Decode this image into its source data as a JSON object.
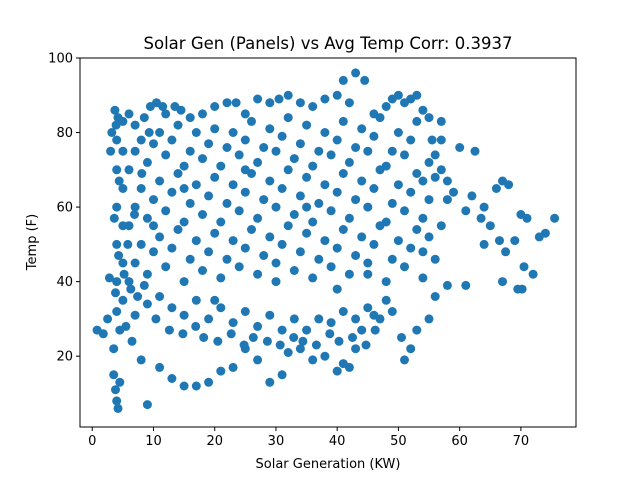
{
  "chart_data": {
    "type": "scatter",
    "title": "Solar Gen (Panels) vs Avg Temp Corr: 0.3937",
    "xlabel": "Solar Generation (KW)",
    "ylabel": "Temp (F)",
    "xlim": [
      -2,
      79
    ],
    "ylim": [
      1,
      100
    ],
    "xticks": [
      0,
      10,
      20,
      30,
      40,
      50,
      60,
      70
    ],
    "yticks": [
      20,
      40,
      60,
      80,
      100
    ],
    "grid": false,
    "legend": "none",
    "marker_color": "#1f77b4",
    "series": [
      {
        "points": [
          [
            0.8,
            27
          ],
          [
            1.8,
            26
          ],
          [
            2.5,
            30
          ],
          [
            2.8,
            41
          ],
          [
            3,
            75
          ],
          [
            3.2,
            80
          ],
          [
            3.5,
            15
          ],
          [
            3.8,
            11
          ],
          [
            4,
            8
          ],
          [
            4.2,
            6
          ],
          [
            4.5,
            13
          ],
          [
            3.7,
            86
          ],
          [
            4.2,
            84
          ],
          [
            5,
            83
          ],
          [
            6,
            85
          ],
          [
            7,
            82
          ],
          [
            8.5,
            84
          ],
          [
            9.5,
            87
          ],
          [
            10.5,
            88
          ],
          [
            11.5,
            87
          ],
          [
            12,
            85
          ],
          [
            13.5,
            87
          ],
          [
            14.5,
            86
          ],
          [
            16,
            84
          ],
          [
            18,
            85
          ],
          [
            20,
            87
          ],
          [
            22,
            88
          ],
          [
            23.5,
            88
          ],
          [
            25,
            85
          ],
          [
            27,
            89
          ],
          [
            29,
            88
          ],
          [
            30.5,
            89
          ],
          [
            32,
            90
          ],
          [
            34,
            88
          ],
          [
            36,
            87
          ],
          [
            38,
            89
          ],
          [
            40,
            90
          ],
          [
            41,
            94
          ],
          [
            42,
            88
          ],
          [
            43,
            96
          ],
          [
            44.5,
            94
          ],
          [
            46,
            85
          ],
          [
            48,
            87
          ],
          [
            49,
            89
          ],
          [
            50,
            90
          ],
          [
            51,
            88
          ],
          [
            52,
            89
          ],
          [
            53,
            90
          ],
          [
            54,
            86
          ],
          [
            55,
            84
          ],
          [
            57,
            83
          ],
          [
            55.5,
            78
          ],
          [
            56,
            74
          ],
          [
            57,
            70
          ],
          [
            58,
            67
          ],
          [
            59,
            64
          ],
          [
            60,
            76
          ],
          [
            61,
            59
          ],
          [
            62,
            63
          ],
          [
            62.5,
            75
          ],
          [
            63.5,
            57
          ],
          [
            64,
            60
          ],
          [
            65,
            55
          ],
          [
            66,
            65
          ],
          [
            67,
            67
          ],
          [
            68,
            66
          ],
          [
            66.5,
            51
          ],
          [
            67.5,
            48
          ],
          [
            69,
            51
          ],
          [
            70,
            58
          ],
          [
            71,
            57
          ],
          [
            73,
            52
          ],
          [
            74,
            53
          ],
          [
            75.5,
            57
          ],
          [
            70.5,
            44
          ],
          [
            72,
            42
          ],
          [
            69.5,
            38
          ],
          [
            70.2,
            38
          ],
          [
            67,
            40
          ],
          [
            64,
            50
          ],
          [
            61,
            39
          ],
          [
            58,
            39
          ],
          [
            56,
            36
          ],
          [
            54,
            41
          ],
          [
            55,
            30
          ],
          [
            53,
            27
          ],
          [
            52,
            22
          ],
          [
            51,
            19
          ],
          [
            50.5,
            25
          ],
          [
            49,
            32
          ],
          [
            48,
            35
          ],
          [
            46,
            31
          ],
          [
            45,
            33
          ],
          [
            47,
            30
          ],
          [
            44,
            27
          ],
          [
            43,
            22
          ],
          [
            42,
            17
          ],
          [
            41,
            18
          ],
          [
            40,
            16
          ],
          [
            38,
            20
          ],
          [
            36,
            19
          ],
          [
            34,
            22
          ],
          [
            32,
            21
          ],
          [
            31,
            15
          ],
          [
            29,
            13
          ],
          [
            27,
            19
          ],
          [
            25,
            22
          ],
          [
            23,
            17
          ],
          [
            21,
            16
          ],
          [
            19,
            13
          ],
          [
            17,
            12
          ],
          [
            15,
            12
          ],
          [
            13,
            14
          ],
          [
            11,
            17
          ],
          [
            9,
            7
          ],
          [
            8,
            19
          ],
          [
            6.5,
            24
          ],
          [
            5.5,
            28
          ],
          [
            7,
            31
          ],
          [
            9,
            34
          ],
          [
            11,
            36
          ],
          [
            13,
            33
          ],
          [
            15,
            31
          ],
          [
            17,
            35
          ],
          [
            19,
            30
          ],
          [
            21,
            33
          ],
          [
            23,
            29
          ],
          [
            25,
            32
          ],
          [
            27,
            28
          ],
          [
            29,
            31
          ],
          [
            31,
            27
          ],
          [
            33,
            30
          ],
          [
            35,
            27
          ],
          [
            37,
            30
          ],
          [
            39,
            29
          ],
          [
            41,
            32
          ],
          [
            43,
            30
          ],
          [
            4,
            32
          ],
          [
            5,
            35
          ],
          [
            4,
            40
          ],
          [
            5,
            45
          ],
          [
            4,
            50
          ],
          [
            5,
            55
          ],
          [
            4,
            60
          ],
          [
            5,
            65
          ],
          [
            4,
            70
          ],
          [
            5,
            75
          ],
          [
            4,
            78
          ],
          [
            6,
            40
          ],
          [
            7,
            45
          ],
          [
            8,
            50
          ],
          [
            6,
            55
          ],
          [
            7,
            60
          ],
          [
            8,
            65
          ],
          [
            6,
            70
          ],
          [
            7,
            75
          ],
          [
            8,
            78
          ],
          [
            9,
            42
          ],
          [
            10,
            48
          ],
          [
            11,
            52
          ],
          [
            9,
            57
          ],
          [
            10,
            62
          ],
          [
            11,
            67
          ],
          [
            9,
            72
          ],
          [
            10,
            77
          ],
          [
            11,
            80
          ],
          [
            12,
            44
          ],
          [
            13,
            49
          ],
          [
            14,
            54
          ],
          [
            12,
            59
          ],
          [
            13,
            64
          ],
          [
            14,
            69
          ],
          [
            12,
            74
          ],
          [
            13,
            78
          ],
          [
            14,
            82
          ],
          [
            15,
            40
          ],
          [
            16,
            46
          ],
          [
            17,
            51
          ],
          [
            15,
            56
          ],
          [
            16,
            61
          ],
          [
            17,
            66
          ],
          [
            15,
            71
          ],
          [
            16,
            75
          ],
          [
            17,
            80
          ],
          [
            18,
            43
          ],
          [
            19,
            48
          ],
          [
            20,
            53
          ],
          [
            18,
            58
          ],
          [
            19,
            63
          ],
          [
            20,
            68
          ],
          [
            18,
            73
          ],
          [
            19,
            77
          ],
          [
            20,
            81
          ],
          [
            21,
            41
          ],
          [
            22,
            46
          ],
          [
            23,
            51
          ],
          [
            21,
            56
          ],
          [
            22,
            61
          ],
          [
            23,
            66
          ],
          [
            21,
            71
          ],
          [
            22,
            76
          ],
          [
            23,
            80
          ],
          [
            24,
            44
          ],
          [
            25,
            49
          ],
          [
            26,
            54
          ],
          [
            24,
            59
          ],
          [
            25,
            64
          ],
          [
            26,
            69
          ],
          [
            24,
            74
          ],
          [
            25,
            78
          ],
          [
            26,
            83
          ],
          [
            27,
            42
          ],
          [
            28,
            47
          ],
          [
            29,
            52
          ],
          [
            27,
            57
          ],
          [
            28,
            62
          ],
          [
            29,
            67
          ],
          [
            27,
            72
          ],
          [
            28,
            76
          ],
          [
            29,
            81
          ],
          [
            30,
            45
          ],
          [
            31,
            50
          ],
          [
            32,
            55
          ],
          [
            30,
            60
          ],
          [
            31,
            65
          ],
          [
            32,
            70
          ],
          [
            30,
            75
          ],
          [
            31,
            79
          ],
          [
            32,
            84
          ],
          [
            33,
            43
          ],
          [
            34,
            48
          ],
          [
            35,
            53
          ],
          [
            33,
            58
          ],
          [
            34,
            63
          ],
          [
            35,
            68
          ],
          [
            33,
            73
          ],
          [
            34,
            77
          ],
          [
            35,
            82
          ],
          [
            36,
            41
          ],
          [
            37,
            46
          ],
          [
            38,
            51
          ],
          [
            36,
            56
          ],
          [
            37,
            61
          ],
          [
            38,
            66
          ],
          [
            36,
            71
          ],
          [
            37,
            75
          ],
          [
            38,
            80
          ],
          [
            39,
            44
          ],
          [
            40,
            49
          ],
          [
            41,
            54
          ],
          [
            39,
            59
          ],
          [
            40,
            64
          ],
          [
            41,
            69
          ],
          [
            39,
            74
          ],
          [
            40,
            78
          ],
          [
            41,
            83
          ],
          [
            42,
            42
          ],
          [
            43,
            47
          ],
          [
            44,
            52
          ],
          [
            42,
            57
          ],
          [
            43,
            62
          ],
          [
            44,
            67
          ],
          [
            42,
            72
          ],
          [
            43,
            76
          ],
          [
            44,
            81
          ],
          [
            45,
            45
          ],
          [
            46,
            50
          ],
          [
            47,
            55
          ],
          [
            45,
            60
          ],
          [
            46,
            65
          ],
          [
            47,
            70
          ],
          [
            45,
            75
          ],
          [
            46,
            79
          ],
          [
            47,
            84
          ],
          [
            48,
            40
          ],
          [
            49,
            46
          ],
          [
            50,
            51
          ],
          [
            48,
            56
          ],
          [
            49,
            61
          ],
          [
            50,
            66
          ],
          [
            48,
            71
          ],
          [
            49,
            75
          ],
          [
            50,
            80
          ],
          [
            51,
            44
          ],
          [
            52,
            49
          ],
          [
            53,
            54
          ],
          [
            51,
            59
          ],
          [
            52,
            64
          ],
          [
            53,
            69
          ],
          [
            51,
            74
          ],
          [
            52,
            78
          ],
          [
            53,
            83
          ],
          [
            54,
            48
          ],
          [
            55,
            52
          ],
          [
            54,
            57
          ],
          [
            55,
            62
          ],
          [
            54,
            67
          ],
          [
            55,
            72
          ],
          [
            56,
            46
          ],
          [
            57,
            55
          ],
          [
            58,
            62
          ],
          [
            56,
            68
          ],
          [
            57,
            78
          ],
          [
            3.5,
            22
          ],
          [
            4.5,
            27
          ],
          [
            3.8,
            37
          ],
          [
            4.3,
            47
          ],
          [
            3.6,
            57
          ],
          [
            4.4,
            67
          ],
          [
            3.9,
            82
          ],
          [
            5.2,
            42
          ],
          [
            6.3,
            38
          ],
          [
            7.4,
            36
          ],
          [
            8.5,
            39
          ],
          [
            5.8,
            50
          ],
          [
            6.9,
            58
          ],
          [
            8.1,
            69
          ],
          [
            9.3,
            80
          ],
          [
            10.4,
            30
          ],
          [
            12.6,
            27
          ],
          [
            14.8,
            26
          ],
          [
            16.9,
            28
          ],
          [
            18.2,
            25
          ],
          [
            20.5,
            24
          ],
          [
            22.7,
            26
          ],
          [
            24.8,
            23
          ],
          [
            26.3,
            25
          ],
          [
            28.6,
            24
          ],
          [
            30.7,
            23
          ],
          [
            32.9,
            25
          ],
          [
            34.4,
            24
          ],
          [
            36.6,
            23
          ],
          [
            38.8,
            26
          ],
          [
            40.3,
            24
          ],
          [
            42.5,
            25
          ],
          [
            44.7,
            23
          ],
          [
            46.2,
            27
          ],
          [
            10,
            55
          ],
          [
            20,
            35
          ],
          [
            30,
            40
          ],
          [
            40,
            38
          ],
          [
            15,
            65
          ],
          [
            25,
            70
          ],
          [
            35,
            60
          ],
          [
            45,
            42
          ]
        ]
      }
    ]
  }
}
